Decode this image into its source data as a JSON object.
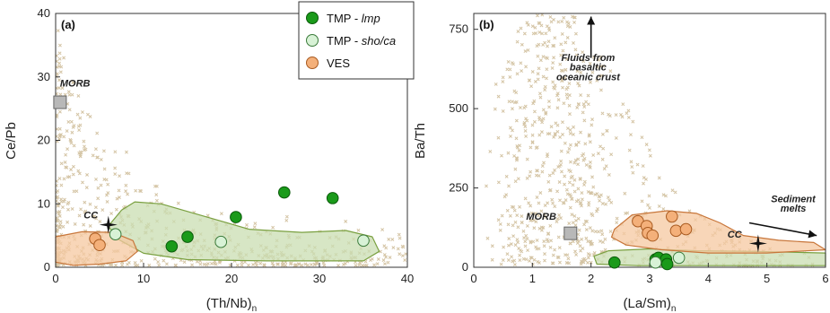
{
  "colors": {
    "tmp_lmp_fill": "#1a9a1a",
    "tmp_lmp_stroke": "#0a5a0a",
    "tmp_shoca_fill": "#d8f2d6",
    "tmp_shoca_stroke": "#3a7a3a",
    "ves_fill": "#f4b07a",
    "ves_stroke": "#a85a20",
    "green_field_fill": "#c9ddb2",
    "green_field_stroke": "#7aa040",
    "orange_field_fill": "#f6c8a0",
    "orange_field_stroke": "#c8763a",
    "background_points": "#d4c4a4",
    "morb_square": "#b8b8b8"
  },
  "legend": {
    "placement": "top-center",
    "items": [
      {
        "name": "TMP - ",
        "italic": "lmp",
        "marker": "filled-circle-dark-green"
      },
      {
        "name": "TMP - ",
        "italic": "sho/ca",
        "marker": "filled-circle-pale-green"
      },
      {
        "name": "VES",
        "italic": "",
        "marker": "filled-circle-orange"
      }
    ]
  },
  "chart_data": [
    {
      "type": "scatter",
      "panel_label": "(a)",
      "xlabel_main": "(Th/Nb)",
      "xlabel_sub": "n",
      "ylabel": "Ce/Pb",
      "xlim": [
        0,
        40
      ],
      "ylim": [
        0,
        40
      ],
      "xticks": [
        0,
        10,
        20,
        30,
        40
      ],
      "yticks": [
        0,
        10,
        20,
        30,
        40
      ],
      "grid": false,
      "annotations": [
        {
          "text": "MORB",
          "x": 0.5,
          "y": 28.5
        },
        {
          "text": "CC",
          "x": 4.0,
          "y": 7.7
        }
      ],
      "reference_points": [
        {
          "name": "MORB",
          "marker": "square",
          "x": 0.5,
          "y": 26
        },
        {
          "name": "CC",
          "marker": "star",
          "x": 6.0,
          "y": 6.7
        }
      ],
      "series": [
        {
          "name": "TMP - lmp",
          "points": [
            [
              13.2,
              3.3
            ],
            [
              15.0,
              4.8
            ],
            [
              20.5,
              7.9
            ],
            [
              26.0,
              11.8
            ],
            [
              31.5,
              10.9
            ]
          ]
        },
        {
          "name": "TMP - sho/ca",
          "points": [
            [
              6.8,
              5.2
            ],
            [
              18.8,
              4.0
            ],
            [
              35.0,
              4.2
            ]
          ]
        },
        {
          "name": "VES",
          "points": [
            [
              4.5,
              4.5
            ],
            [
              5.0,
              3.5
            ]
          ]
        }
      ],
      "fields": [
        {
          "series": "TMP",
          "outline": [
            [
              6.0,
              6.5
            ],
            [
              7.5,
              9.0
            ],
            [
              9.0,
              10.3
            ],
            [
              12.0,
              10.0
            ],
            [
              17.0,
              8.0
            ],
            [
              22.0,
              6.0
            ],
            [
              28.0,
              5.5
            ],
            [
              33.0,
              5.8
            ],
            [
              36.0,
              4.8
            ],
            [
              36.8,
              2.5
            ],
            [
              35.0,
              1.0
            ],
            [
              24.0,
              1.0
            ],
            [
              15.0,
              1.2
            ],
            [
              10.0,
              2.2
            ],
            [
              7.0,
              4.5
            ]
          ]
        },
        {
          "series": "VES",
          "outline": [
            [
              0.0,
              4.8
            ],
            [
              3.0,
              5.6
            ],
            [
              6.5,
              5.5
            ],
            [
              8.8,
              4.2
            ],
            [
              9.3,
              2.5
            ],
            [
              8.0,
              1.0
            ],
            [
              5.0,
              0.5
            ],
            [
              2.0,
              0.3
            ],
            [
              0.0,
              0.8
            ]
          ]
        }
      ]
    },
    {
      "type": "scatter",
      "panel_label": "(b)",
      "xlabel_main": "(La/Sm)",
      "xlabel_sub": "n",
      "ylabel": "Ba/Th",
      "xlim": [
        0,
        6
      ],
      "ylim": [
        0,
        800
      ],
      "xticks": [
        0,
        1,
        2,
        3,
        4,
        5,
        6
      ],
      "yticks": [
        0,
        250,
        500,
        750
      ],
      "grid": false,
      "annotations": [
        {
          "text": "Fluids from",
          "x": 1.95,
          "y": 650
        },
        {
          "text": "basaltic",
          "x": 1.95,
          "y": 620
        },
        {
          "text": "oceanic crust",
          "x": 1.95,
          "y": 590
        },
        {
          "text": "MORB",
          "x": 1.15,
          "y": 150
        },
        {
          "text": "CC",
          "x": 4.45,
          "y": 93
        },
        {
          "text": "Sediment",
          "x": 5.45,
          "y": 205
        },
        {
          "text": "melts",
          "x": 5.45,
          "y": 175
        }
      ],
      "reference_points": [
        {
          "name": "MORB",
          "marker": "square",
          "x": 1.65,
          "y": 107
        },
        {
          "name": "CC",
          "marker": "star",
          "x": 4.85,
          "y": 75
        }
      ],
      "arrows": [
        {
          "from": [
            2.0,
            660
          ],
          "to": [
            2.0,
            790
          ]
        },
        {
          "from": [
            4.7,
            140
          ],
          "to": [
            5.85,
            100
          ]
        }
      ],
      "series": [
        {
          "name": "TMP - lmp",
          "points": [
            [
              2.4,
              15
            ],
            [
              3.1,
              25
            ],
            [
              3.15,
              30
            ],
            [
              3.28,
              25
            ],
            [
              3.3,
              10
            ]
          ]
        },
        {
          "name": "TMP - sho/ca",
          "points": [
            [
              3.1,
              15
            ],
            [
              3.5,
              30
            ]
          ]
        },
        {
          "name": "VES",
          "points": [
            [
              2.8,
              145
            ],
            [
              2.95,
              130
            ],
            [
              2.97,
              108
            ],
            [
              3.05,
              100
            ],
            [
              3.38,
              160
            ],
            [
              3.45,
              115
            ],
            [
              3.62,
              120
            ]
          ]
        }
      ],
      "fields": [
        {
          "series": "TMP",
          "outline": [
            [
              2.05,
              35
            ],
            [
              2.3,
              52
            ],
            [
              3.0,
              58
            ],
            [
              3.8,
              52
            ],
            [
              4.8,
              50
            ],
            [
              6.0,
              45
            ],
            [
              6.0,
              5
            ],
            [
              4.0,
              5
            ],
            [
              2.8,
              5
            ],
            [
              2.1,
              10
            ]
          ]
        },
        {
          "series": "VES",
          "outline": [
            [
              2.4,
              120
            ],
            [
              2.7,
              165
            ],
            [
              3.3,
              178
            ],
            [
              3.8,
              170
            ],
            [
              4.2,
              140
            ],
            [
              4.6,
              100
            ],
            [
              5.2,
              85
            ],
            [
              5.8,
              78
            ],
            [
              6.0,
              55
            ],
            [
              5.0,
              45
            ],
            [
              4.0,
              45
            ],
            [
              3.2,
              55
            ],
            [
              2.6,
              70
            ],
            [
              2.35,
              95
            ]
          ]
        }
      ]
    }
  ]
}
